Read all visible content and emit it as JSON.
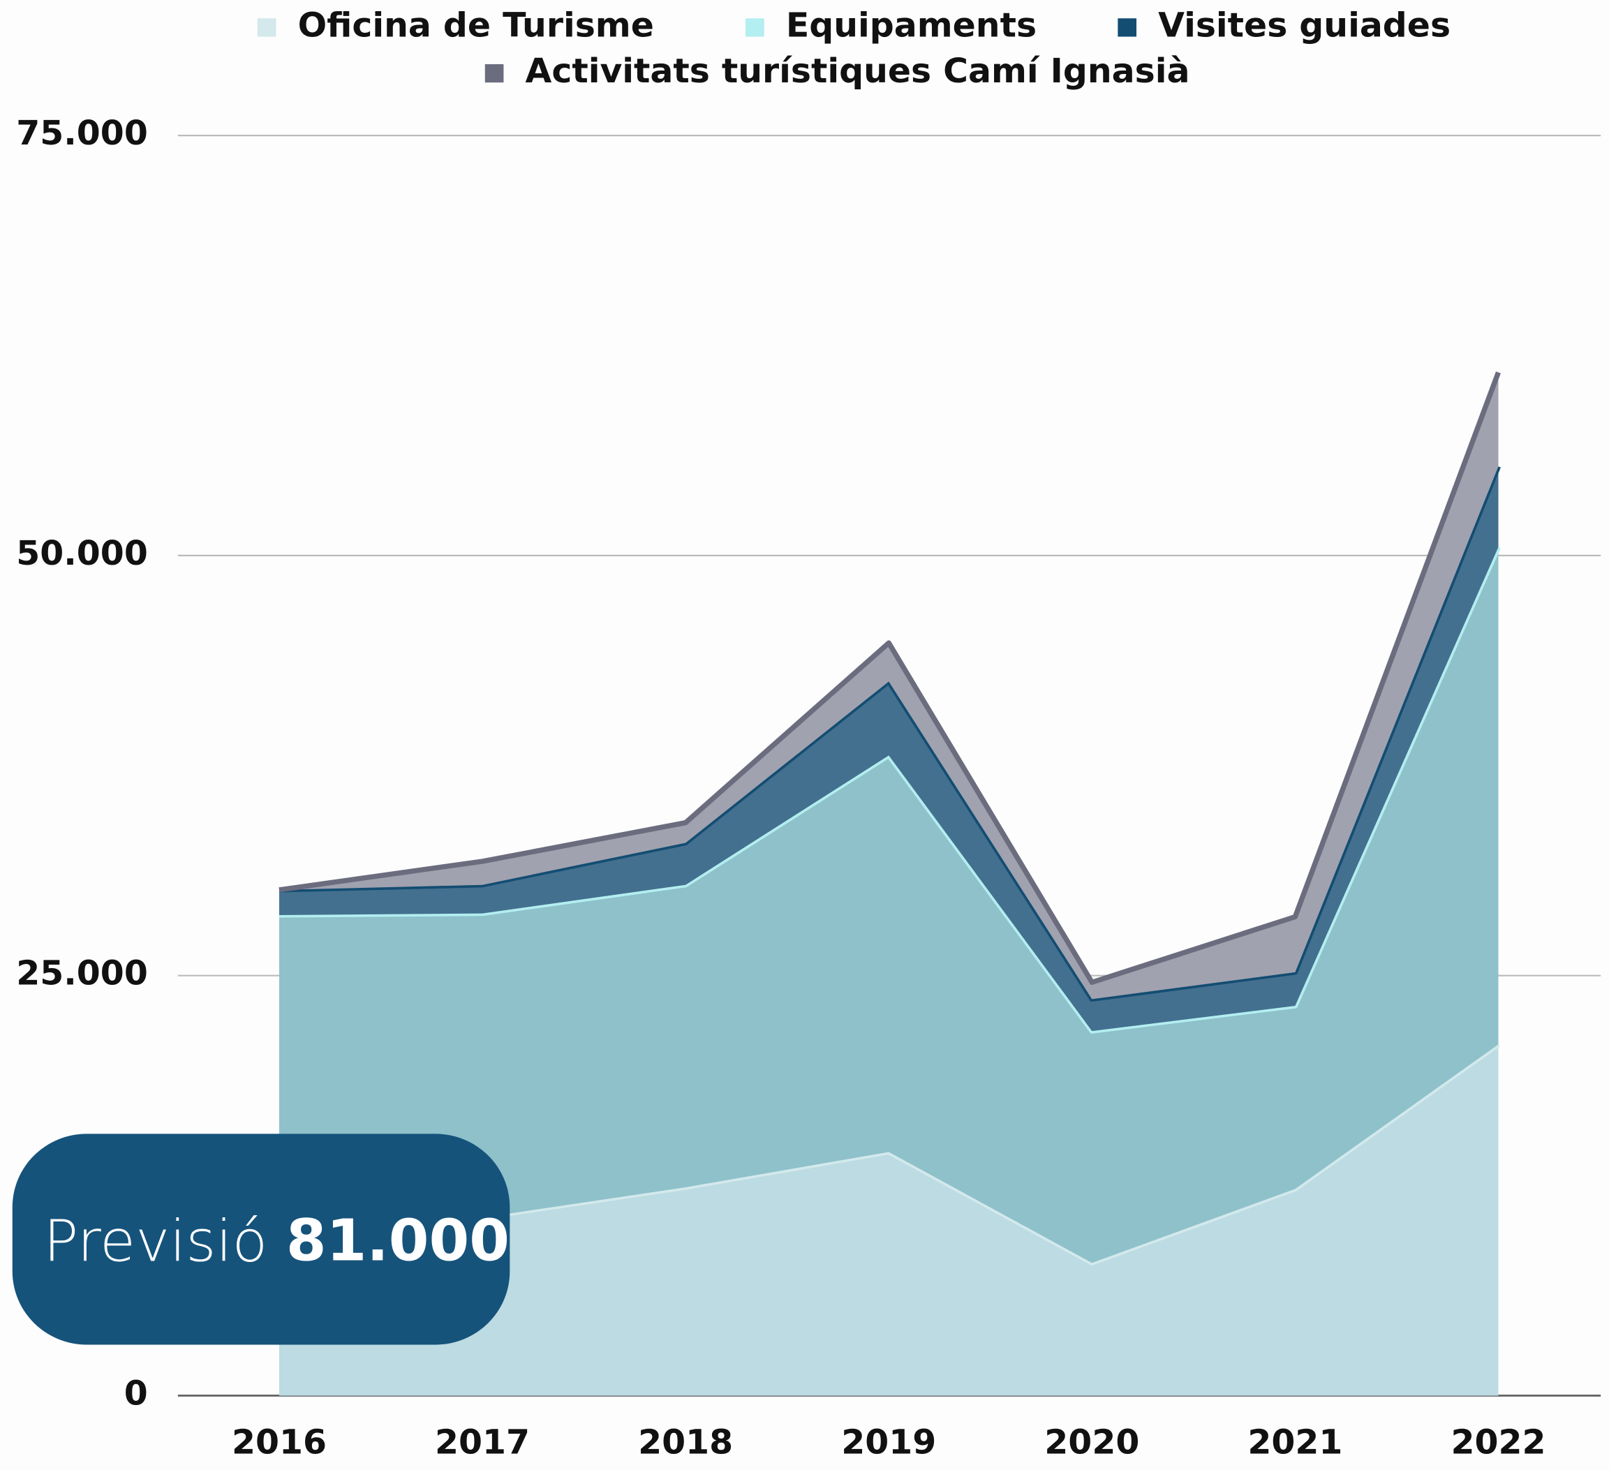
{
  "chart_data": {
    "type": "stacked_area",
    "categories": [
      "2016",
      "2017",
      "2018",
      "2019",
      "2020",
      "2021",
      "2022"
    ],
    "series": [
      {
        "name": "Oficina de Turisme",
        "color": "#bcdbe2",
        "line_color": "#d3e9ec",
        "values": [
          9000,
          10600,
          12400,
          14500,
          7900,
          12300,
          20900
        ]
      },
      {
        "name": "Equipaments",
        "color": "#8fc1cb",
        "line_color": "#b3eef0",
        "values": [
          19600,
          18100,
          18000,
          23600,
          13800,
          10900,
          29600
        ]
      },
      {
        "name": "Visites guiades",
        "color": "#44708f",
        "line_color": "#134d72",
        "values": [
          1500,
          1700,
          2500,
          4400,
          1900,
          2000,
          4800
        ]
      },
      {
        "name": "Activitats turístiques Camí Ignasià",
        "color": "#a1a2af",
        "line_color": "#6b6c7e",
        "values": [
          0,
          1400,
          1200,
          2300,
          1000,
          3300,
          5600
        ]
      }
    ],
    "ylim": [
      0,
      75000
    ],
    "yticks": [
      0,
      {
        "value": 25000,
        "label": "25.000"
      },
      {
        "value": 50000,
        "label": "50.000"
      },
      {
        "value": 75000,
        "label": "75.000"
      }
    ],
    "grid": true,
    "legend": "top",
    "annotation": {
      "label": "Previsió",
      "value": "81.000"
    }
  }
}
